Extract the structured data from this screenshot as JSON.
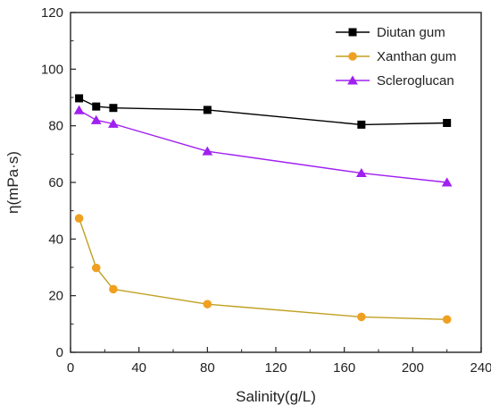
{
  "chart_data": {
    "type": "line",
    "title": "",
    "xlabel": "Salinity(g/L)",
    "ylabel": "η(mPa·s)",
    "xlim": [
      0,
      240
    ],
    "ylim": [
      0,
      120
    ],
    "xticks": [
      0,
      40,
      80,
      120,
      160,
      200,
      240
    ],
    "yticks": [
      0,
      20,
      40,
      60,
      80,
      100,
      120
    ],
    "grid": false,
    "legend_position": "top-right",
    "series": [
      {
        "name": "Diutan gum",
        "marker": "square",
        "color": "#000000",
        "x": [
          5,
          15,
          25,
          80,
          170,
          220
        ],
        "y": [
          89.7,
          86.8,
          86.3,
          85.6,
          80.4,
          81.0
        ]
      },
      {
        "name": "Xanthan gum",
        "marker": "circle",
        "color": "#f0a020",
        "line_color": "#c0a020",
        "x": [
          5,
          15,
          25,
          80,
          170,
          220
        ],
        "y": [
          47.3,
          29.8,
          22.3,
          17.0,
          12.5,
          11.6
        ]
      },
      {
        "name": "Scleroglucan",
        "marker": "triangle",
        "color": "#a020f0",
        "x": [
          5,
          15,
          25,
          80,
          170,
          220
        ],
        "y": [
          85.5,
          82.0,
          80.7,
          71.0,
          63.3,
          60.0
        ]
      }
    ]
  }
}
